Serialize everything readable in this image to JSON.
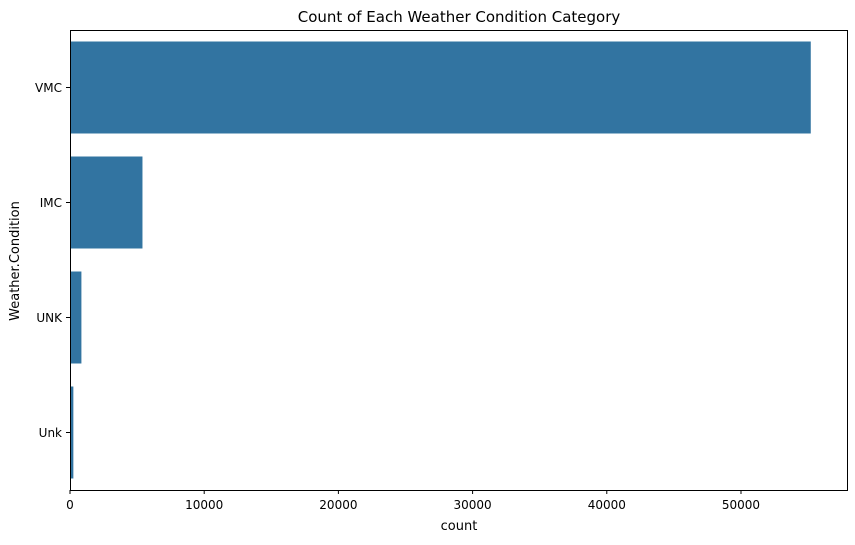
{
  "chart_data": {
    "type": "bar",
    "orientation": "horizontal",
    "title": "Count of Each Weather Condition Category",
    "xlabel": "count",
    "ylabel": "Weather.Condition",
    "categories": [
      "VMC",
      "IMC",
      "UNK",
      "Unk"
    ],
    "values": [
      55200,
      5400,
      850,
      250
    ],
    "xlim": [
      0,
      57900
    ],
    "xticks": [
      0,
      10000,
      20000,
      30000,
      40000,
      50000
    ],
    "xtick_labels": [
      "0",
      "10000",
      "20000",
      "30000",
      "40000",
      "50000"
    ],
    "grid": false,
    "legend": "none",
    "bar_color": "#3274a1"
  }
}
